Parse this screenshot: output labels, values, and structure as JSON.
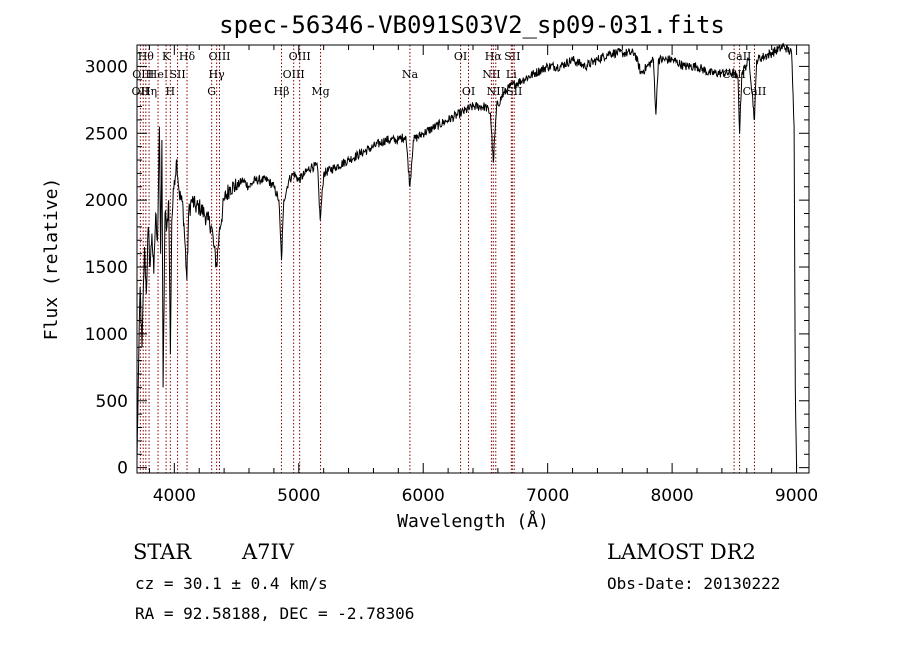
{
  "chart_data": {
    "type": "line",
    "title": "spec-56346-VB091S03V2_sp09-031.fits",
    "xlabel": "Wavelength (Å)",
    "ylabel": "Flux (relative)",
    "xlim": [
      3700,
      9100
    ],
    "ylim": [
      -40,
      3160
    ],
    "xticks": [
      4000,
      5000,
      6000,
      7000,
      8000,
      9000
    ],
    "yticks": [
      0,
      500,
      1000,
      1500,
      2000,
      2500,
      3000
    ],
    "grid": false,
    "line_color": "#000000",
    "marker_color": "#8b0000",
    "series": [
      {
        "points": [
          [
            3700,
            50
          ],
          [
            3710,
            600
          ],
          [
            3725,
            1350
          ],
          [
            3740,
            900
          ],
          [
            3760,
            1650
          ],
          [
            3775,
            1300
          ],
          [
            3790,
            1800
          ],
          [
            3805,
            1500
          ],
          [
            3820,
            1750
          ],
          [
            3835,
            1450
          ],
          [
            3850,
            1900
          ],
          [
            3865,
            1700
          ],
          [
            3880,
            2550
          ],
          [
            3890,
            1600
          ],
          [
            3900,
            2450
          ],
          [
            3910,
            600
          ],
          [
            3925,
            1900
          ],
          [
            3940,
            1800
          ],
          [
            3955,
            2000
          ],
          [
            3968,
            850
          ],
          [
            3980,
            1850
          ],
          [
            4000,
            2150
          ],
          [
            4020,
            2300
          ],
          [
            4040,
            2050
          ],
          [
            4070,
            1950
          ],
          [
            4101,
            1400
          ],
          [
            4115,
            1900
          ],
          [
            4140,
            2000
          ],
          [
            4170,
            1950
          ],
          [
            4200,
            1950
          ],
          [
            4240,
            1900
          ],
          [
            4270,
            1850
          ],
          [
            4300,
            1800
          ],
          [
            4318,
            1650
          ],
          [
            4340,
            1500
          ],
          [
            4360,
            1750
          ],
          [
            4400,
            2000
          ],
          [
            4450,
            2100
          ],
          [
            4500,
            2100
          ],
          [
            4550,
            2150
          ],
          [
            4600,
            2100
          ],
          [
            4650,
            2150
          ],
          [
            4700,
            2150
          ],
          [
            4750,
            2150
          ],
          [
            4800,
            2100
          ],
          [
            4840,
            2000
          ],
          [
            4861,
            1550
          ],
          [
            4880,
            2000
          ],
          [
            4920,
            2150
          ],
          [
            4960,
            2200
          ],
          [
            5000,
            2150
          ],
          [
            5050,
            2200
          ],
          [
            5100,
            2250
          ],
          [
            5150,
            2250
          ],
          [
            5172,
            1850
          ],
          [
            5200,
            2200
          ],
          [
            5300,
            2250
          ],
          [
            5400,
            2300
          ],
          [
            5500,
            2350
          ],
          [
            5600,
            2400
          ],
          [
            5700,
            2450
          ],
          [
            5800,
            2450
          ],
          [
            5860,
            2480
          ],
          [
            5893,
            2100
          ],
          [
            5920,
            2450
          ],
          [
            6000,
            2500
          ],
          [
            6100,
            2550
          ],
          [
            6200,
            2600
          ],
          [
            6300,
            2650
          ],
          [
            6400,
            2700
          ],
          [
            6500,
            2700
          ],
          [
            6540,
            2650
          ],
          [
            6563,
            2280
          ],
          [
            6590,
            2700
          ],
          [
            6650,
            2800
          ],
          [
            6700,
            2850
          ],
          [
            6800,
            2900
          ],
          [
            6900,
            2950
          ],
          [
            7000,
            3000
          ],
          [
            7100,
            3000
          ],
          [
            7200,
            3050
          ],
          [
            7300,
            3000
          ],
          [
            7400,
            3050
          ],
          [
            7500,
            3100
          ],
          [
            7600,
            3100
          ],
          [
            7700,
            3100
          ],
          [
            7750,
            2950
          ],
          [
            7800,
            3000
          ],
          [
            7850,
            3050
          ],
          [
            7870,
            2640
          ],
          [
            7890,
            3050
          ],
          [
            8000,
            3050
          ],
          [
            8100,
            3000
          ],
          [
            8200,
            3000
          ],
          [
            8300,
            2950
          ],
          [
            8400,
            2950
          ],
          [
            8500,
            2950
          ],
          [
            8530,
            2900
          ],
          [
            8542,
            2500
          ],
          [
            8560,
            2950
          ],
          [
            8620,
            3050
          ],
          [
            8662,
            2600
          ],
          [
            8680,
            3050
          ],
          [
            8800,
            3100
          ],
          [
            8900,
            3150
          ],
          [
            8960,
            3100
          ],
          [
            8980,
            2550
          ],
          [
            8990,
            600
          ],
          [
            9000,
            0
          ]
        ]
      }
    ],
    "line_markers": [
      {
        "wavelength": 3727,
        "label": "OII",
        "row": 2
      },
      {
        "wavelength": 3750,
        "label": "OIII",
        "row": 1
      },
      {
        "wavelength": 3771,
        "label": "Hθ",
        "row": 0
      },
      {
        "wavelength": 3797,
        "label": "Hη",
        "row": 2
      },
      {
        "wavelength": 3869,
        "label": "HeI",
        "row": 1
      },
      {
        "wavelength": 3934,
        "label": "K",
        "row": 0
      },
      {
        "wavelength": 3968,
        "label": "H",
        "row": 2
      },
      {
        "wavelength": 4026,
        "label": "SII",
        "row": 1
      },
      {
        "wavelength": 4102,
        "label": "Hδ",
        "row": 0
      },
      {
        "wavelength": 4300,
        "label": "G",
        "row": 2
      },
      {
        "wavelength": 4340,
        "label": "Hγ",
        "row": 1
      },
      {
        "wavelength": 4363,
        "label": "OIII",
        "row": 0
      },
      {
        "wavelength": 4861,
        "label": "Hβ",
        "row": 2
      },
      {
        "wavelength": 4959,
        "label": "OIII",
        "row": 1
      },
      {
        "wavelength": 5007,
        "label": "OIII",
        "row": 0
      },
      {
        "wavelength": 5175,
        "label": "Mg",
        "row": 2
      },
      {
        "wavelength": 5893,
        "label": "Na",
        "row": 1
      },
      {
        "wavelength": 6300,
        "label": "OI",
        "row": 0
      },
      {
        "wavelength": 6364,
        "label": "OI",
        "row": 2
      },
      {
        "wavelength": 6548,
        "label": "NII",
        "row": 1
      },
      {
        "wavelength": 6563,
        "label": "Hα",
        "row": 0
      },
      {
        "wavelength": 6583,
        "label": "NII",
        "row": 2
      },
      {
        "wavelength": 6708,
        "label": "Li",
        "row": 1
      },
      {
        "wavelength": 6716,
        "label": "SII",
        "row": 0
      },
      {
        "wavelength": 6731,
        "label": "SII",
        "row": 2
      },
      {
        "wavelength": 8498,
        "label": "CaII",
        "row": 1
      },
      {
        "wavelength": 8542,
        "label": "CaII",
        "row": 0
      },
      {
        "wavelength": 8662,
        "label": "CaII",
        "row": 2
      }
    ]
  },
  "info": {
    "object_class": "STAR",
    "subclass": "A7IV",
    "survey": "LAMOST DR2",
    "cz": "cz = 30.1 ± 0.4 km/s",
    "obs_date": "Obs-Date: 20130222",
    "coords": "RA =  92.58188, DEC =  -2.78306"
  }
}
